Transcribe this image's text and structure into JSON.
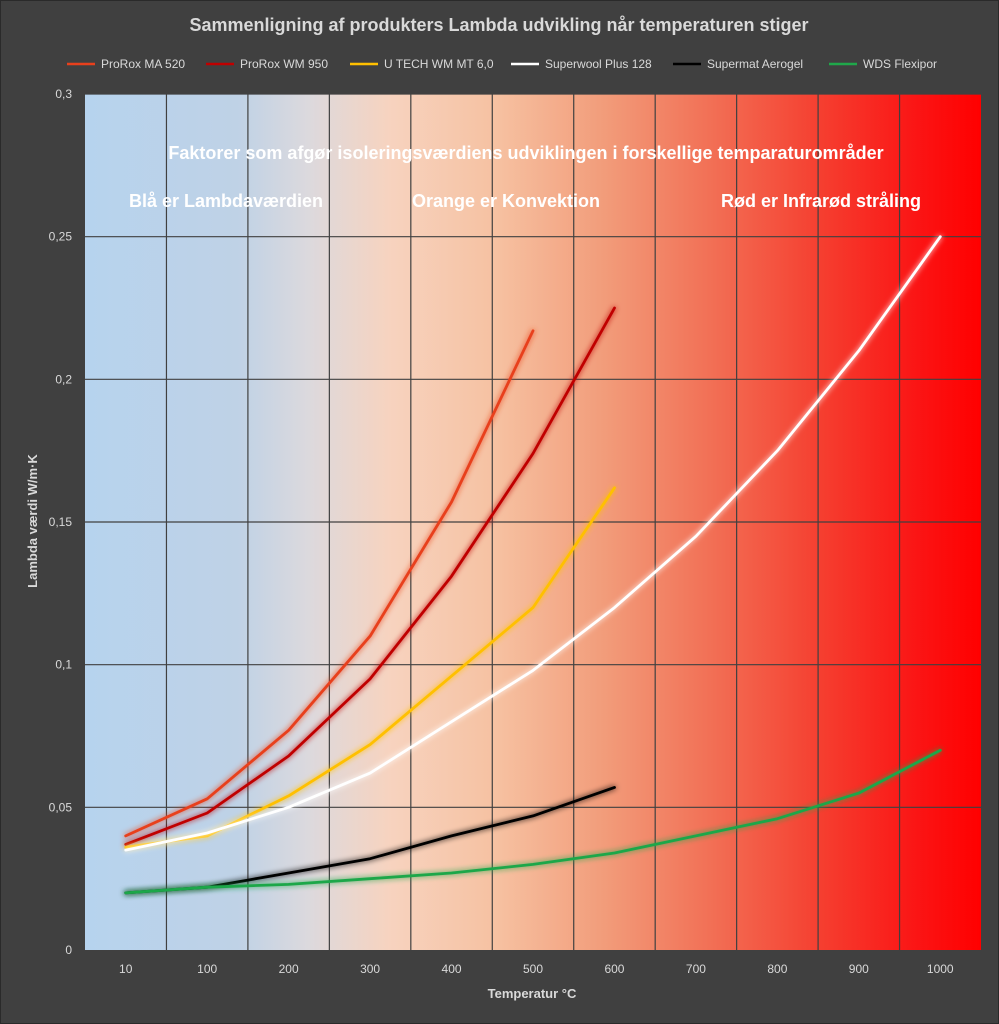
{
  "chart_data": {
    "type": "line",
    "title": "Sammenligning af produkters Lambda udvikling når temperaturen stiger",
    "xlabel": "Temperatur °C",
    "ylabel": "Lambda værdi W/m·K",
    "categories": [
      "10",
      "100",
      "200",
      "300",
      "400",
      "500",
      "600",
      "700",
      "800",
      "900",
      "1000"
    ],
    "y_ticks": [
      "0",
      "0,05",
      "0,1",
      "0,15",
      "0,2",
      "0,25",
      "0,3"
    ],
    "ylim": [
      0,
      0.3
    ],
    "legend_position": "top",
    "grid": true,
    "series": [
      {
        "name": "ProRox MA 520",
        "color": "#e8401c",
        "values": [
          0.04,
          0.053,
          0.077,
          0.11,
          0.157,
          0.217,
          null,
          null,
          null,
          null,
          null
        ]
      },
      {
        "name": "ProRox WM 950",
        "color": "#c00000",
        "values": [
          0.037,
          0.048,
          0.068,
          0.095,
          0.131,
          0.174,
          0.225,
          null,
          null,
          null,
          null
        ]
      },
      {
        "name": "U TECH WM MT 6,0",
        "color": "#ffc000",
        "values": [
          0.036,
          0.04,
          0.054,
          0.072,
          0.096,
          0.12,
          0.162,
          null,
          null,
          null,
          null
        ]
      },
      {
        "name": "Superwool Plus 128",
        "color": "#ffffff",
        "values": [
          0.035,
          0.041,
          0.05,
          0.062,
          0.08,
          0.098,
          0.12,
          0.145,
          0.175,
          0.21,
          0.25
        ]
      },
      {
        "name": "Supermat Aerogel",
        "color": "#000000",
        "values": [
          0.02,
          0.022,
          0.027,
          0.032,
          0.04,
          0.047,
          0.057,
          null,
          null,
          null,
          null
        ]
      },
      {
        "name": "WDS Flexipor",
        "color": "#1fa74a",
        "values": [
          0.02,
          0.022,
          0.023,
          0.025,
          0.027,
          0.03,
          0.034,
          0.04,
          0.046,
          0.055,
          0.07
        ]
      }
    ],
    "annotations": {
      "heading": "Faktorer som afgør isoleringsværdiens udviklingen i forskellige temparaturområder",
      "blue": "Blå er Lambdaværdien",
      "orange": "Orange er Konvektion",
      "red": "Rød er Infrarød stråling"
    }
  }
}
